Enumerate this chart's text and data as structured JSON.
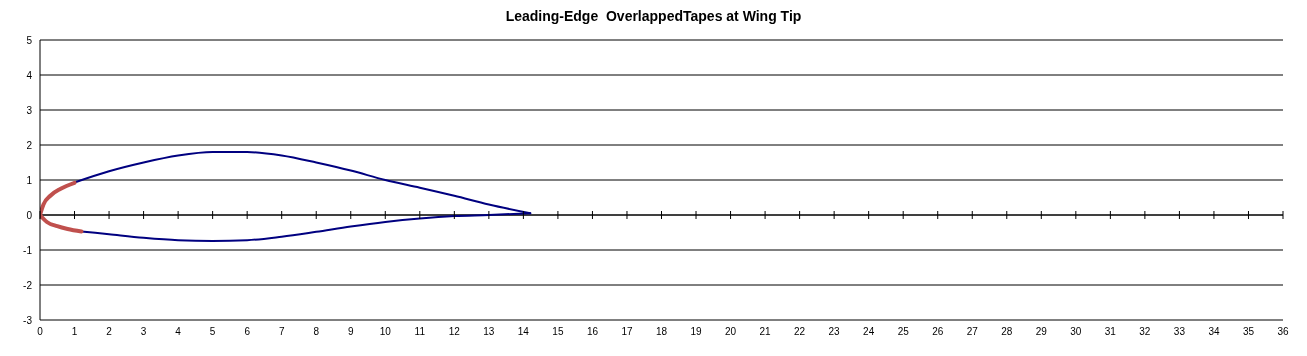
{
  "chart_data": {
    "type": "line",
    "title": "Leading-Edge  OverlappedTapes at Wing Tip",
    "xlim": [
      0,
      36
    ],
    "xticks": [
      0,
      1,
      2,
      3,
      4,
      5,
      6,
      7,
      8,
      9,
      10,
      11,
      12,
      13,
      14,
      15,
      16,
      17,
      18,
      19,
      20,
      21,
      22,
      23,
      24,
      25,
      26,
      27,
      28,
      29,
      30,
      31,
      32,
      33,
      34,
      35,
      36
    ],
    "ylim": [
      -3,
      5
    ],
    "yticks": [
      -3,
      -2,
      -1,
      0,
      1,
      2,
      3,
      4,
      5
    ],
    "grid": "y",
    "legend": false,
    "marker": "none",
    "line_style": "solid",
    "series": [
      {
        "color": "#000080",
        "x": [
          1,
          2,
          3,
          4,
          5,
          6,
          7,
          8,
          9,
          10,
          11,
          12,
          13,
          14.2
        ],
        "values": [
          0.93,
          1.25,
          1.5,
          1.7,
          1.8,
          1.8,
          1.7,
          1.5,
          1.27,
          1.0,
          0.78,
          0.55,
          0.3,
          0.05
        ]
      },
      {
        "color": "#000080",
        "x": [
          1.2,
          2,
          3,
          4,
          5,
          6,
          7,
          8,
          9,
          10,
          11,
          12,
          13,
          14.2
        ],
        "values": [
          -0.47,
          -0.55,
          -0.65,
          -0.72,
          -0.74,
          -0.72,
          -0.62,
          -0.48,
          -0.33,
          -0.2,
          -0.1,
          -0.03,
          0,
          0.05
        ]
      },
      {
        "color": "#c0504d",
        "x": [
          0,
          0.1,
          0.3,
          0.6,
          1
        ],
        "values": [
          0,
          0.3,
          0.55,
          0.75,
          0.92
        ]
      },
      {
        "color": "#c0504d",
        "x": [
          0,
          0.2,
          0.5,
          0.8,
          1.2
        ],
        "values": [
          0,
          -0.2,
          -0.32,
          -0.4,
          -0.47
        ]
      }
    ]
  }
}
